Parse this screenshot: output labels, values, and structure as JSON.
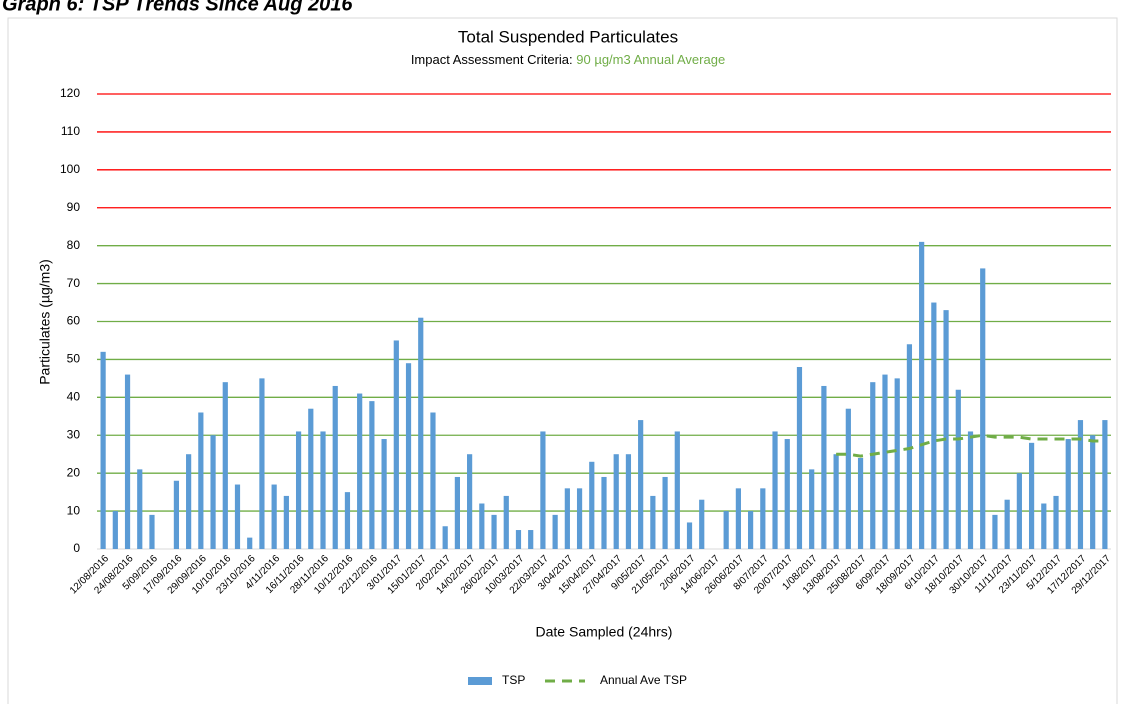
{
  "header": {
    "title": "Graph 6: TSP Trends Since Aug 2016"
  },
  "chart_data": {
    "type": "bar",
    "title": "Total Suspended Particulates",
    "subtitle": [
      "Impact Assessment Criteria:",
      "90 µg/m3 Annual Average"
    ],
    "subtitle_highlight_color": "#70ad47",
    "x_label": "Date Sampled (24hrs)",
    "y_label": "Particulates (µg/m3)",
    "categories": [
      "12/08/2016",
      null,
      "24/08/2016",
      null,
      "5/09/2016",
      null,
      "17/09/2016",
      null,
      "29/09/2016",
      null,
      "10/10/2016",
      null,
      "23/10/2016",
      null,
      "4/11/2016",
      null,
      "16/11/2016",
      null,
      "28/11/2016",
      null,
      "10/12/2016",
      null,
      "22/12/2016",
      null,
      "3/01/2017",
      null,
      "15/01/2017",
      null,
      "2/02/2017",
      null,
      "14/02/2017",
      null,
      "26/02/2017",
      null,
      "10/03/2017",
      null,
      "22/03/2017",
      null,
      "3/04/2017",
      null,
      "15/04/2017",
      null,
      "27/04/2017",
      null,
      "9/05/2017",
      null,
      "21/05/2017",
      null,
      "2/06/2017",
      null,
      "14/06/2017",
      null,
      "26/06/2017",
      null,
      "8/07/2017",
      null,
      "20/07/2017",
      null,
      "1/08/2017",
      null,
      "13/08/2017",
      null,
      "25/08/2017",
      null,
      "6/09/2017",
      null,
      "18/09/2017",
      null,
      "6/10/2017",
      null,
      "18/10/2017",
      null,
      "30/10/2017",
      null,
      "11/11/2017",
      null,
      "23/11/2017",
      null,
      "5/12/2017",
      null,
      "17/12/2017",
      null,
      "29/12/2017"
    ],
    "series": [
      {
        "name": "TSP",
        "type": "bar",
        "color": "#5b9bd5",
        "values": [
          52,
          10,
          46,
          21,
          9,
          null,
          18,
          25,
          36,
          30,
          44,
          17,
          3,
          45,
          17,
          14,
          31,
          37,
          31,
          43,
          15,
          41,
          39,
          29,
          55,
          49,
          61,
          36,
          6,
          19,
          25,
          12,
          9,
          14,
          5,
          5,
          31,
          9,
          16,
          16,
          23,
          19,
          25,
          25,
          34,
          14,
          19,
          31,
          7,
          13,
          null,
          10,
          16,
          10,
          16,
          31,
          29,
          48,
          21,
          43,
          25,
          37,
          24,
          44,
          46,
          45,
          54,
          81,
          65,
          63,
          42,
          31,
          74,
          9,
          13,
          20,
          28,
          12,
          14,
          29,
          34,
          30,
          34
        ]
      },
      {
        "name": "Annual Ave TSP",
        "type": "line",
        "dashed": true,
        "color": "#70ad47",
        "values": [
          null,
          null,
          null,
          null,
          null,
          null,
          null,
          null,
          null,
          null,
          null,
          null,
          null,
          null,
          null,
          null,
          null,
          null,
          null,
          null,
          null,
          null,
          null,
          null,
          null,
          null,
          null,
          null,
          null,
          null,
          null,
          null,
          null,
          null,
          null,
          null,
          null,
          null,
          null,
          null,
          null,
          null,
          null,
          null,
          null,
          null,
          null,
          null,
          null,
          null,
          null,
          null,
          null,
          null,
          null,
          null,
          null,
          null,
          null,
          null,
          25,
          25,
          24.5,
          25,
          25.5,
          26,
          26.5,
          27.5,
          28.5,
          29,
          29,
          29.5,
          30,
          29.5,
          29.5,
          29.5,
          29,
          29,
          29,
          29,
          29,
          28.5,
          28.5
        ]
      }
    ],
    "ylim": [
      0,
      120
    ],
    "yticks": [
      0,
      10,
      20,
      30,
      40,
      50,
      60,
      70,
      80,
      90,
      100,
      110,
      120
    ],
    "grid": true,
    "grid_color": "#70ad47",
    "criteria": 90,
    "criteria_color": "#ff0000",
    "legend": "bottom"
  }
}
